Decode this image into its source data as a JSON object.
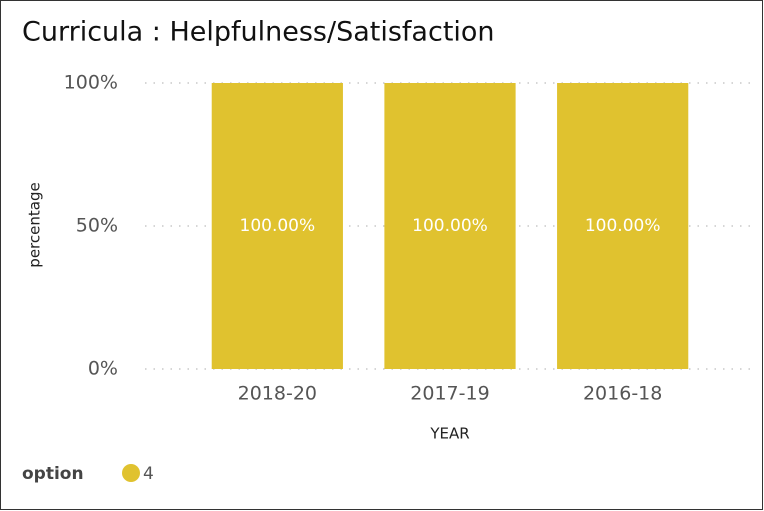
{
  "chart_data": {
    "type": "bar",
    "title": "Curricula : Helpfulness/Satisfaction",
    "categories": [
      "2018-20",
      "2017-19",
      "2016-18"
    ],
    "series": [
      {
        "name": "4",
        "color": "#E0C22F",
        "values": [
          100,
          100,
          100
        ],
        "value_labels": [
          "100.00%",
          "100.00%",
          "100.00%"
        ]
      }
    ],
    "ylim": [
      0,
      100
    ],
    "yticks": [
      {
        "value": 0,
        "label": "0%"
      },
      {
        "value": 50,
        "label": "50%"
      },
      {
        "value": 100,
        "label": "100%"
      }
    ],
    "xlabel": "YEAR",
    "ylabel": "percentage",
    "legend_title": "option",
    "grid": true
  }
}
